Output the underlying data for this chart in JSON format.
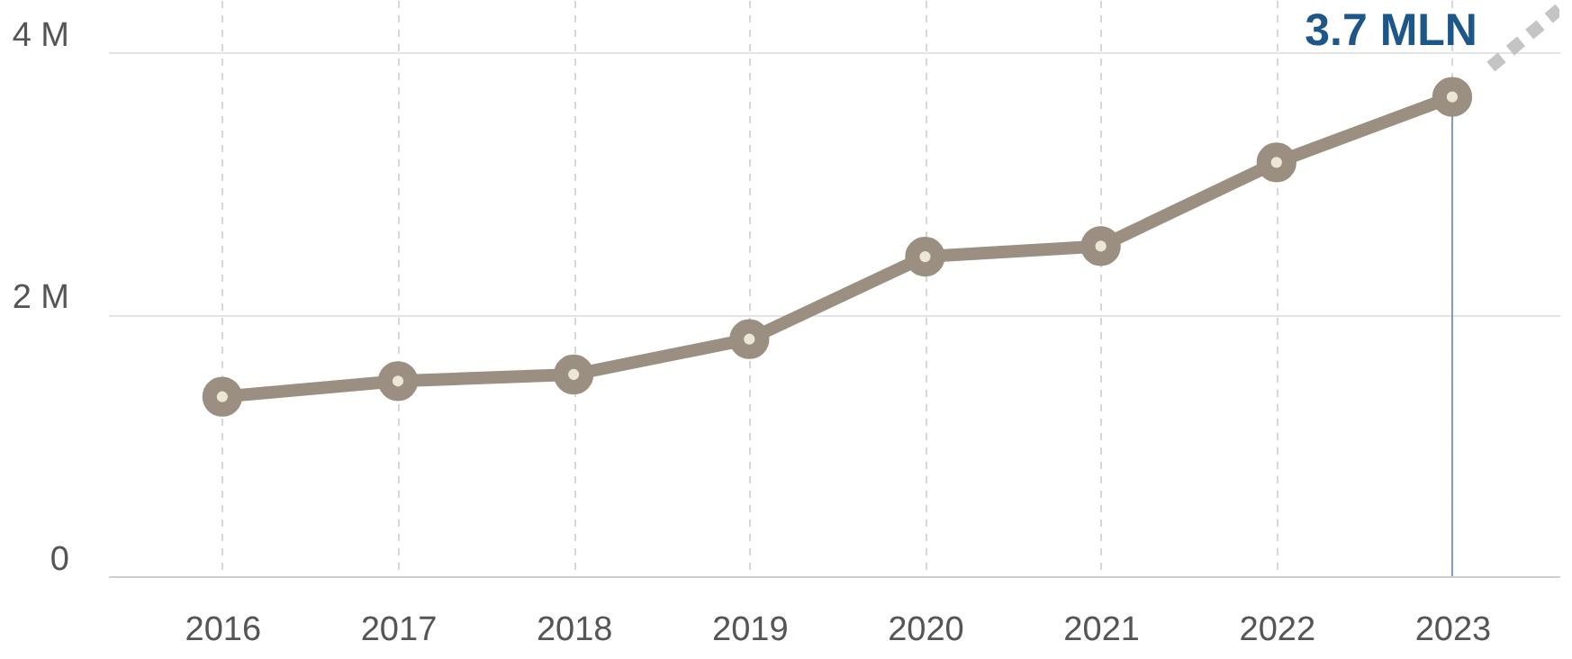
{
  "chart_data": {
    "type": "line",
    "xlim": [
      2015.35,
      2023.61
    ],
    "xticks": [
      2016,
      2017,
      2018,
      2019,
      2020,
      2021,
      2022,
      2023
    ],
    "ylim": [
      0,
      4.4
    ],
    "yticks": [
      0,
      {
        "value": 2,
        "label": "2 M"
      },
      {
        "value": 4,
        "label": "4 M"
      }
    ],
    "grid": true,
    "marker": "circle",
    "ref_lines": [
      {
        "axis": "x",
        "value": 2023,
        "color": "#7f9bb8"
      }
    ],
    "series": [
      {
        "color": "#9a8f80",
        "x": [
          2016,
          2017,
          2018,
          2019,
          2020,
          2021,
          2022,
          2023
        ],
        "values": [
          1.37,
          1.49,
          1.54,
          1.81,
          2.44,
          2.52,
          3.16,
          3.66
        ]
      },
      {
        "color": "#c4c4c4",
        "x": [
          2023.22,
          2023.61
        ],
        "values": [
          3.89,
          4.33
        ],
        "line_style": "dashed",
        "marker": "none"
      }
    ],
    "annotations": [
      {
        "text": "3.7 MLN",
        "x": 2023,
        "y": 3.66
      }
    ]
  }
}
